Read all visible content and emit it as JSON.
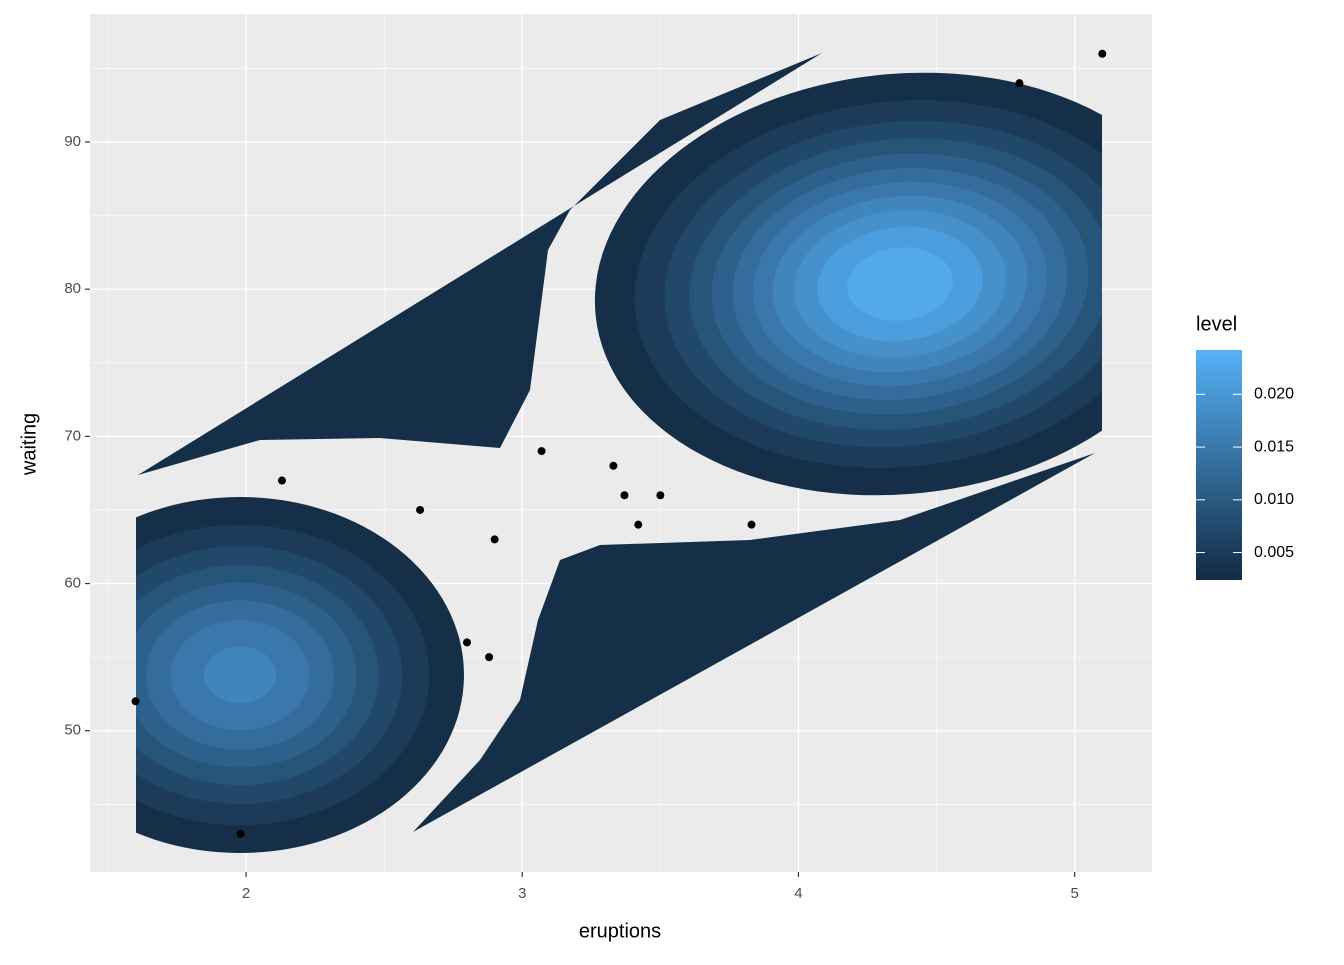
{
  "chart_data": {
    "type": "density2d",
    "x_label": "eruptions",
    "y_label": "waiting",
    "xlim": [
      1.435,
      5.28
    ],
    "ylim": [
      40.4,
      98.7
    ],
    "xticks": [
      2,
      3,
      4,
      5
    ],
    "yticks": [
      50,
      60,
      70,
      80,
      90
    ],
    "grid": true,
    "x": [
      1.6,
      1.98,
      2.13,
      2.63,
      2.8,
      2.88,
      2.9,
      3.07,
      3.33,
      3.37,
      3.42,
      3.5,
      3.83,
      4.8,
      5.1
    ],
    "y": [
      52,
      43,
      67,
      65,
      56,
      55,
      63,
      69,
      68,
      66,
      64,
      66,
      64,
      94,
      96
    ],
    "point_color": "#000000",
    "levels": [
      0.003,
      0.005,
      0.007,
      0.009,
      0.011,
      0.013,
      0.015,
      0.017,
      0.019,
      0.021,
      0.023
    ],
    "legend_title": "level",
    "colorlim": [
      0.0024,
      0.0242
    ],
    "colorticks": [
      0.005,
      {
        "value": 0.01,
        "label": "0.010"
      },
      0.015,
      {
        "value": 0.02,
        "label": "0.020"
      }
    ],
    "low_color": "#132B43",
    "high_color": "#56B1F7"
  }
}
